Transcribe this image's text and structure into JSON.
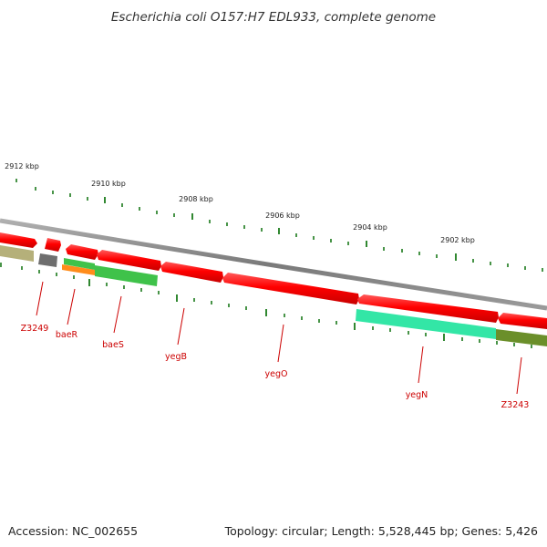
{
  "map": {
    "title": "Escherichia coli O157:H7 EDL933, complete genome",
    "accession": "Accession: NC_002655",
    "summary": "Topology: circular; Length: 5,528,445 bp; Genes: 5,426",
    "kbp_labels": [
      "2912 kbp",
      "2910 kbp",
      "2908 kbp",
      "2906 kbp",
      "2904 kbp",
      "2902 kbp"
    ],
    "genes": [
      "Z3249",
      "baeR",
      "baeS",
      "yegB",
      "yegO",
      "yegN",
      "Z3243"
    ]
  },
  "colors": {
    "cds": "#ff0000",
    "label": "#cc0000",
    "tick": "#1a7a1a",
    "backbone": "#8a8a8a",
    "track_tan": "#b5b07a",
    "track_gray": "#6e6e6e",
    "track_green": "#3fc24a",
    "track_orange": "#ff8c1a",
    "track_teal": "#33e6a6",
    "track_olive": "#6b8f2a"
  }
}
